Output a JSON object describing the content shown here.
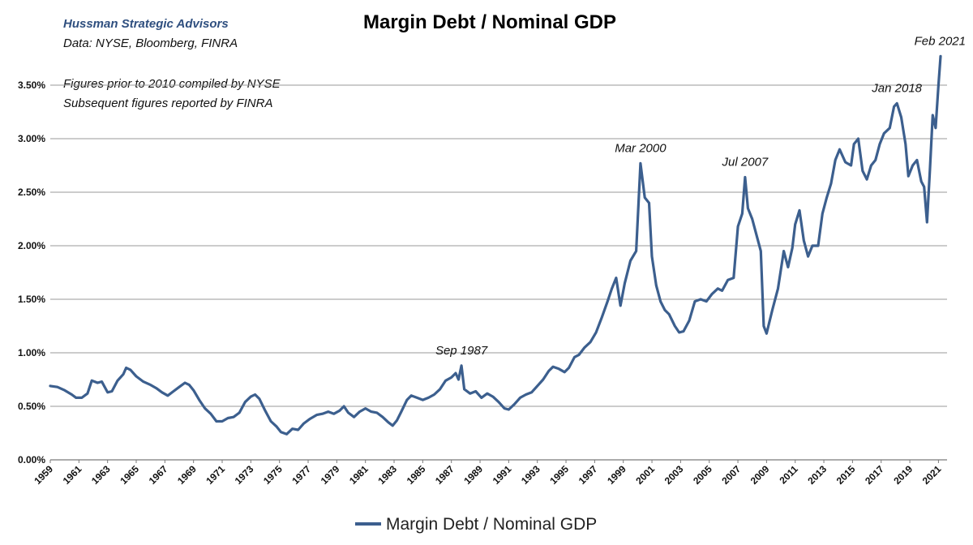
{
  "header": {
    "source_org": "Hussman Strategic Advisors",
    "data_sources": "Data: NYSE, Bloomberg, FINRA",
    "note_line1": "Figures prior to 2010 compiled by NYSE",
    "note_line2": "Subsequent figures reported by FINRA"
  },
  "chart_data": {
    "type": "line",
    "title": "Margin Debt / Nominal GDP",
    "xlabel": "",
    "ylabel": "",
    "xlim": [
      1959,
      2021.6
    ],
    "ylim": [
      0,
      0.0375
    ],
    "grid": true,
    "legend_position": "bottom-center",
    "line_color": "#3c5f8e",
    "y_ticks": [
      "0.00%",
      "0.50%",
      "1.00%",
      "1.50%",
      "2.00%",
      "2.50%",
      "3.00%",
      "3.50%"
    ],
    "y_tick_values": [
      0,
      0.005,
      0.01,
      0.015,
      0.02,
      0.025,
      0.03,
      0.035
    ],
    "x_ticks": [
      "1959",
      "1961",
      "1963",
      "1965",
      "1967",
      "1969",
      "1971",
      "1973",
      "1975",
      "1977",
      "1979",
      "1981",
      "1983",
      "1985",
      "1987",
      "1989",
      "1991",
      "1993",
      "1995",
      "1997",
      "1999",
      "2001",
      "2003",
      "2005",
      "2007",
      "2009",
      "2011",
      "2013",
      "2015",
      "2017",
      "2019",
      "2021"
    ],
    "series": [
      {
        "name": "Margin Debt / Nominal GDP",
        "points": [
          [
            1959.0,
            0.0069
          ],
          [
            1959.5,
            0.0068
          ],
          [
            1960.0,
            0.0065
          ],
          [
            1960.5,
            0.0061
          ],
          [
            1960.8,
            0.0058
          ],
          [
            1961.2,
            0.0058
          ],
          [
            1961.6,
            0.0062
          ],
          [
            1961.9,
            0.0074
          ],
          [
            1962.3,
            0.0072
          ],
          [
            1962.6,
            0.0073
          ],
          [
            1963.0,
            0.0063
          ],
          [
            1963.3,
            0.0064
          ],
          [
            1963.7,
            0.0074
          ],
          [
            1964.1,
            0.008
          ],
          [
            1964.3,
            0.0086
          ],
          [
            1964.6,
            0.0084
          ],
          [
            1965.0,
            0.0078
          ],
          [
            1965.5,
            0.0073
          ],
          [
            1966.0,
            0.007
          ],
          [
            1966.4,
            0.0067
          ],
          [
            1966.8,
            0.0063
          ],
          [
            1967.2,
            0.006
          ],
          [
            1967.6,
            0.0064
          ],
          [
            1968.0,
            0.0068
          ],
          [
            1968.4,
            0.0072
          ],
          [
            1968.7,
            0.007
          ],
          [
            1969.0,
            0.0065
          ],
          [
            1969.4,
            0.0056
          ],
          [
            1969.8,
            0.0048
          ],
          [
            1970.2,
            0.0043
          ],
          [
            1970.6,
            0.0036
          ],
          [
            1971.0,
            0.0036
          ],
          [
            1971.4,
            0.0039
          ],
          [
            1971.8,
            0.004
          ],
          [
            1972.2,
            0.0044
          ],
          [
            1972.6,
            0.0054
          ],
          [
            1973.0,
            0.0059
          ],
          [
            1973.3,
            0.0061
          ],
          [
            1973.6,
            0.0057
          ],
          [
            1974.0,
            0.0046
          ],
          [
            1974.4,
            0.0036
          ],
          [
            1974.8,
            0.0031
          ],
          [
            1975.1,
            0.0026
          ],
          [
            1975.5,
            0.0024
          ],
          [
            1975.9,
            0.0029
          ],
          [
            1976.3,
            0.0028
          ],
          [
            1976.7,
            0.0034
          ],
          [
            1977.1,
            0.0038
          ],
          [
            1977.6,
            0.0042
          ],
          [
            1978.0,
            0.0043
          ],
          [
            1978.4,
            0.0045
          ],
          [
            1978.8,
            0.0043
          ],
          [
            1979.2,
            0.0046
          ],
          [
            1979.5,
            0.005
          ],
          [
            1979.8,
            0.0044
          ],
          [
            1980.2,
            0.004
          ],
          [
            1980.6,
            0.0045
          ],
          [
            1981.0,
            0.0048
          ],
          [
            1981.4,
            0.0045
          ],
          [
            1981.8,
            0.0044
          ],
          [
            1982.2,
            0.004
          ],
          [
            1982.6,
            0.0035
          ],
          [
            1982.9,
            0.0032
          ],
          [
            1983.2,
            0.0037
          ],
          [
            1983.5,
            0.0045
          ],
          [
            1983.9,
            0.0056
          ],
          [
            1984.2,
            0.006
          ],
          [
            1984.6,
            0.0058
          ],
          [
            1985.0,
            0.0056
          ],
          [
            1985.4,
            0.0058
          ],
          [
            1985.8,
            0.0061
          ],
          [
            1986.2,
            0.0066
          ],
          [
            1986.6,
            0.0074
          ],
          [
            1987.0,
            0.0077
          ],
          [
            1987.3,
            0.0081
          ],
          [
            1987.5,
            0.0075
          ],
          [
            1987.7,
            0.0088
          ],
          [
            1987.9,
            0.0066
          ],
          [
            1988.3,
            0.0062
          ],
          [
            1988.7,
            0.0064
          ],
          [
            1989.1,
            0.0058
          ],
          [
            1989.5,
            0.0062
          ],
          [
            1989.9,
            0.0059
          ],
          [
            1990.3,
            0.0054
          ],
          [
            1990.7,
            0.0048
          ],
          [
            1991.0,
            0.0047
          ],
          [
            1991.4,
            0.0052
          ],
          [
            1991.8,
            0.0058
          ],
          [
            1992.2,
            0.0061
          ],
          [
            1992.6,
            0.0063
          ],
          [
            1993.0,
            0.0069
          ],
          [
            1993.4,
            0.0075
          ],
          [
            1993.8,
            0.0083
          ],
          [
            1994.1,
            0.0087
          ],
          [
            1994.5,
            0.0085
          ],
          [
            1994.9,
            0.0082
          ],
          [
            1995.2,
            0.0086
          ],
          [
            1995.6,
            0.0096
          ],
          [
            1995.9,
            0.0098
          ],
          [
            1996.3,
            0.0105
          ],
          [
            1996.7,
            0.011
          ],
          [
            1997.1,
            0.0119
          ],
          [
            1997.5,
            0.0133
          ],
          [
            1997.9,
            0.0148
          ],
          [
            1998.2,
            0.016
          ],
          [
            1998.5,
            0.017
          ],
          [
            1998.8,
            0.0144
          ],
          [
            1999.1,
            0.0165
          ],
          [
            1999.5,
            0.0186
          ],
          [
            1999.9,
            0.0195
          ],
          [
            2000.2,
            0.0277
          ],
          [
            2000.5,
            0.0245
          ],
          [
            2000.8,
            0.024
          ],
          [
            2001.0,
            0.019
          ],
          [
            2001.3,
            0.0163
          ],
          [
            2001.6,
            0.0148
          ],
          [
            2001.9,
            0.014
          ],
          [
            2002.2,
            0.0136
          ],
          [
            2002.6,
            0.0125
          ],
          [
            2002.9,
            0.0119
          ],
          [
            2003.2,
            0.012
          ],
          [
            2003.6,
            0.013
          ],
          [
            2004.0,
            0.0148
          ],
          [
            2004.4,
            0.015
          ],
          [
            2004.8,
            0.0148
          ],
          [
            2005.2,
            0.0155
          ],
          [
            2005.6,
            0.016
          ],
          [
            2005.9,
            0.0158
          ],
          [
            2006.3,
            0.0168
          ],
          [
            2006.7,
            0.017
          ],
          [
            2007.0,
            0.0218
          ],
          [
            2007.3,
            0.023
          ],
          [
            2007.5,
            0.0264
          ],
          [
            2007.7,
            0.0235
          ],
          [
            2008.0,
            0.0225
          ],
          [
            2008.3,
            0.021
          ],
          [
            2008.6,
            0.0195
          ],
          [
            2008.8,
            0.0125
          ],
          [
            2009.0,
            0.0118
          ],
          [
            2009.4,
            0.014
          ],
          [
            2009.8,
            0.016
          ],
          [
            2010.2,
            0.0195
          ],
          [
            2010.5,
            0.018
          ],
          [
            2010.8,
            0.0198
          ],
          [
            2011.0,
            0.022
          ],
          [
            2011.3,
            0.0233
          ],
          [
            2011.6,
            0.0205
          ],
          [
            2011.9,
            0.019
          ],
          [
            2012.2,
            0.02
          ],
          [
            2012.6,
            0.02
          ],
          [
            2012.9,
            0.023
          ],
          [
            2013.2,
            0.0245
          ],
          [
            2013.5,
            0.0258
          ],
          [
            2013.8,
            0.028
          ],
          [
            2014.1,
            0.029
          ],
          [
            2014.5,
            0.0278
          ],
          [
            2014.9,
            0.0275
          ],
          [
            2015.1,
            0.0295
          ],
          [
            2015.4,
            0.03
          ],
          [
            2015.7,
            0.027
          ],
          [
            2016.0,
            0.0262
          ],
          [
            2016.3,
            0.0275
          ],
          [
            2016.6,
            0.028
          ],
          [
            2016.9,
            0.0295
          ],
          [
            2017.2,
            0.0305
          ],
          [
            2017.6,
            0.031
          ],
          [
            2017.9,
            0.033
          ],
          [
            2018.1,
            0.0333
          ],
          [
            2018.4,
            0.032
          ],
          [
            2018.7,
            0.0295
          ],
          [
            2018.9,
            0.0265
          ],
          [
            2019.2,
            0.0275
          ],
          [
            2019.5,
            0.028
          ],
          [
            2019.8,
            0.026
          ],
          [
            2020.0,
            0.0255
          ],
          [
            2020.2,
            0.0222
          ],
          [
            2020.4,
            0.027
          ],
          [
            2020.6,
            0.0322
          ],
          [
            2020.8,
            0.031
          ],
          [
            2021.0,
            0.035
          ],
          [
            2021.15,
            0.0377
          ]
        ]
      }
    ],
    "annotations": [
      {
        "text": "Sep 1987",
        "x": 1987.7,
        "y": 0.0088
      },
      {
        "text": "Mar 2000",
        "x": 2000.2,
        "y": 0.0277
      },
      {
        "text": "Jul 2007",
        "x": 2007.5,
        "y": 0.0264
      },
      {
        "text": "Jan 2018",
        "x": 2018.1,
        "y": 0.0333
      },
      {
        "text": "Feb 2021",
        "x": 2021.15,
        "y": 0.0377
      }
    ]
  }
}
